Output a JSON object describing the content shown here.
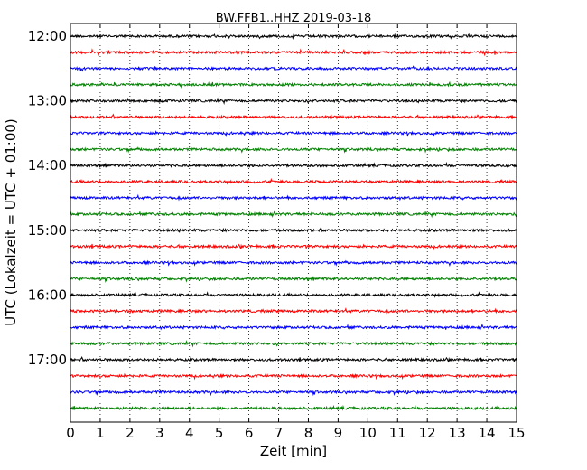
{
  "chart_data": {
    "type": "line",
    "title": "BW.FFB1..HHZ 2019-03-18",
    "xlabel": "Zeit  [min]",
    "ylabel": "UTC (Lokalzeit = UTC + 01:00)",
    "xlim": [
      0,
      15
    ],
    "x_ticks": [
      "0",
      "1",
      "2",
      "3",
      "4",
      "5",
      "6",
      "7",
      "8",
      "9",
      "10",
      "11",
      "12",
      "13",
      "14",
      "15"
    ],
    "y_ticks": [
      {
        "label": "12:00",
        "trace_index": 0
      },
      {
        "label": "13:00",
        "trace_index": 4
      },
      {
        "label": "14:00",
        "trace_index": 8
      },
      {
        "label": "15:00",
        "trace_index": 12
      },
      {
        "label": "16:00",
        "trace_index": 16
      },
      {
        "label": "17:00",
        "trace_index": 20
      }
    ],
    "trace_interval_minutes": 15,
    "trace_count": 24,
    "trace_colors": [
      "#000000",
      "#ff0000",
      "#0000ff",
      "#008000"
    ],
    "grid": {
      "vertical_dotted": true,
      "horizontal": false
    }
  }
}
